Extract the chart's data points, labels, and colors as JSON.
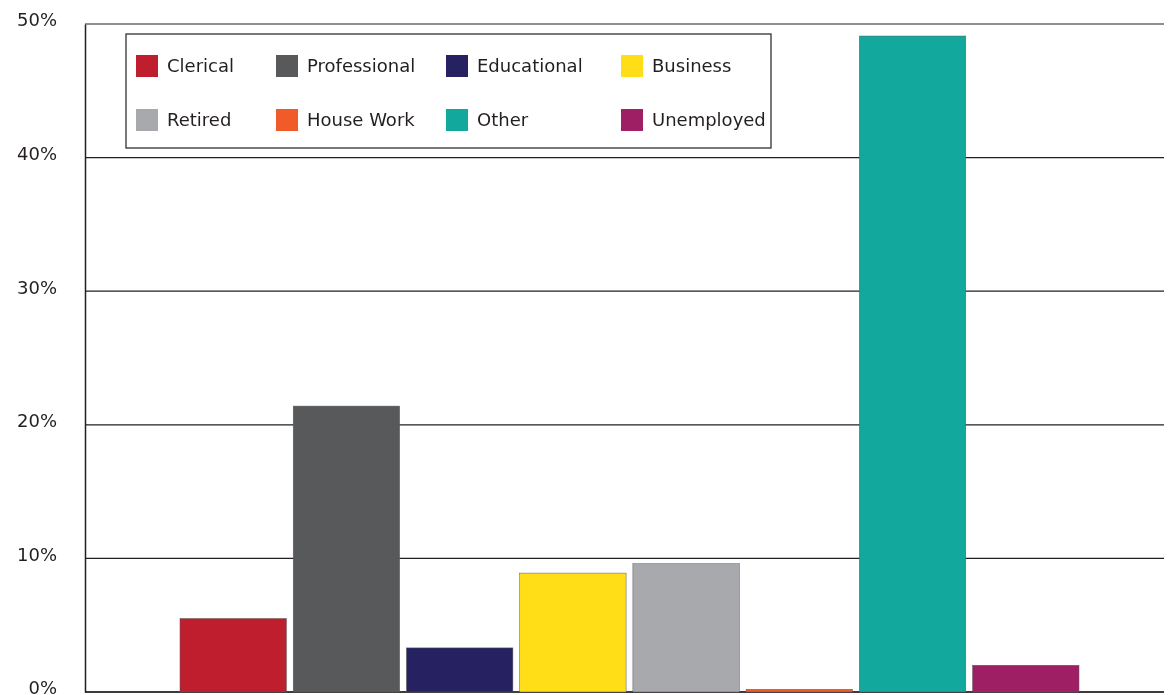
{
  "chart_data": {
    "type": "bar",
    "categories": [
      null
    ],
    "series": [
      {
        "name": "Clerical",
        "color": "#be1e2d",
        "values": [
          5.5
        ]
      },
      {
        "name": "Professional",
        "color": "#58595b",
        "values": [
          21.4
        ]
      },
      {
        "name": "Educational",
        "color": "#262262",
        "values": [
          3.3
        ]
      },
      {
        "name": "Business",
        "color": "#ffde17",
        "values": [
          8.9
        ]
      },
      {
        "name": "Retired",
        "color": "#a7a9ac",
        "values": [
          9.6
        ]
      },
      {
        "name": "House Work",
        "color": "#f15a29",
        "values": [
          0.2
        ]
      },
      {
        "name": "Other",
        "color": "#13a89e",
        "values": [
          49.1
        ]
      },
      {
        "name": "Unemployed",
        "color": "#9e1f63",
        "values": [
          2.0
        ]
      }
    ],
    "ylim": [
      0,
      50
    ],
    "yticks": [
      {
        "value": 0,
        "label": "0%"
      },
      {
        "value": 10,
        "label": "10%"
      },
      {
        "value": 20,
        "label": "20%"
      },
      {
        "value": 30,
        "label": "30%"
      },
      {
        "value": 40,
        "label": "40%"
      },
      {
        "value": 50,
        "label": "50%"
      }
    ],
    "grid": "y",
    "legend": "top left"
  }
}
